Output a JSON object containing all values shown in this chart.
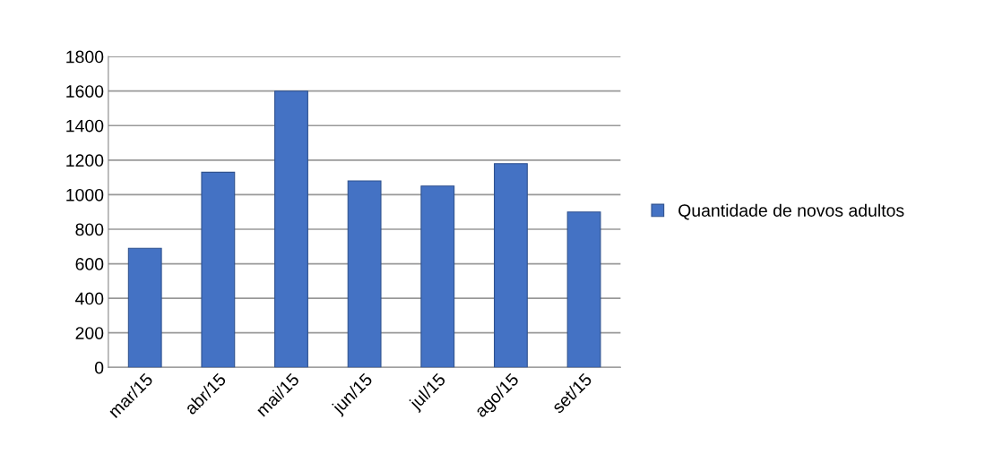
{
  "chart_data": {
    "type": "bar",
    "categories": [
      "mar/15",
      "abr/15",
      "mai/15",
      "jun/15",
      "jul/15",
      "ago/15",
      "set/15"
    ],
    "series": [
      {
        "name": "Quantidade de novos adultos",
        "color": "#4472c4",
        "values": [
          690,
          1130,
          1600,
          1080,
          1050,
          1180,
          900
        ]
      }
    ],
    "ylim": [
      0,
      1800
    ],
    "yticks": [
      0,
      200,
      400,
      600,
      800,
      1000,
      1200,
      1400,
      1600,
      1800
    ],
    "grid": "y",
    "legend": "right"
  }
}
